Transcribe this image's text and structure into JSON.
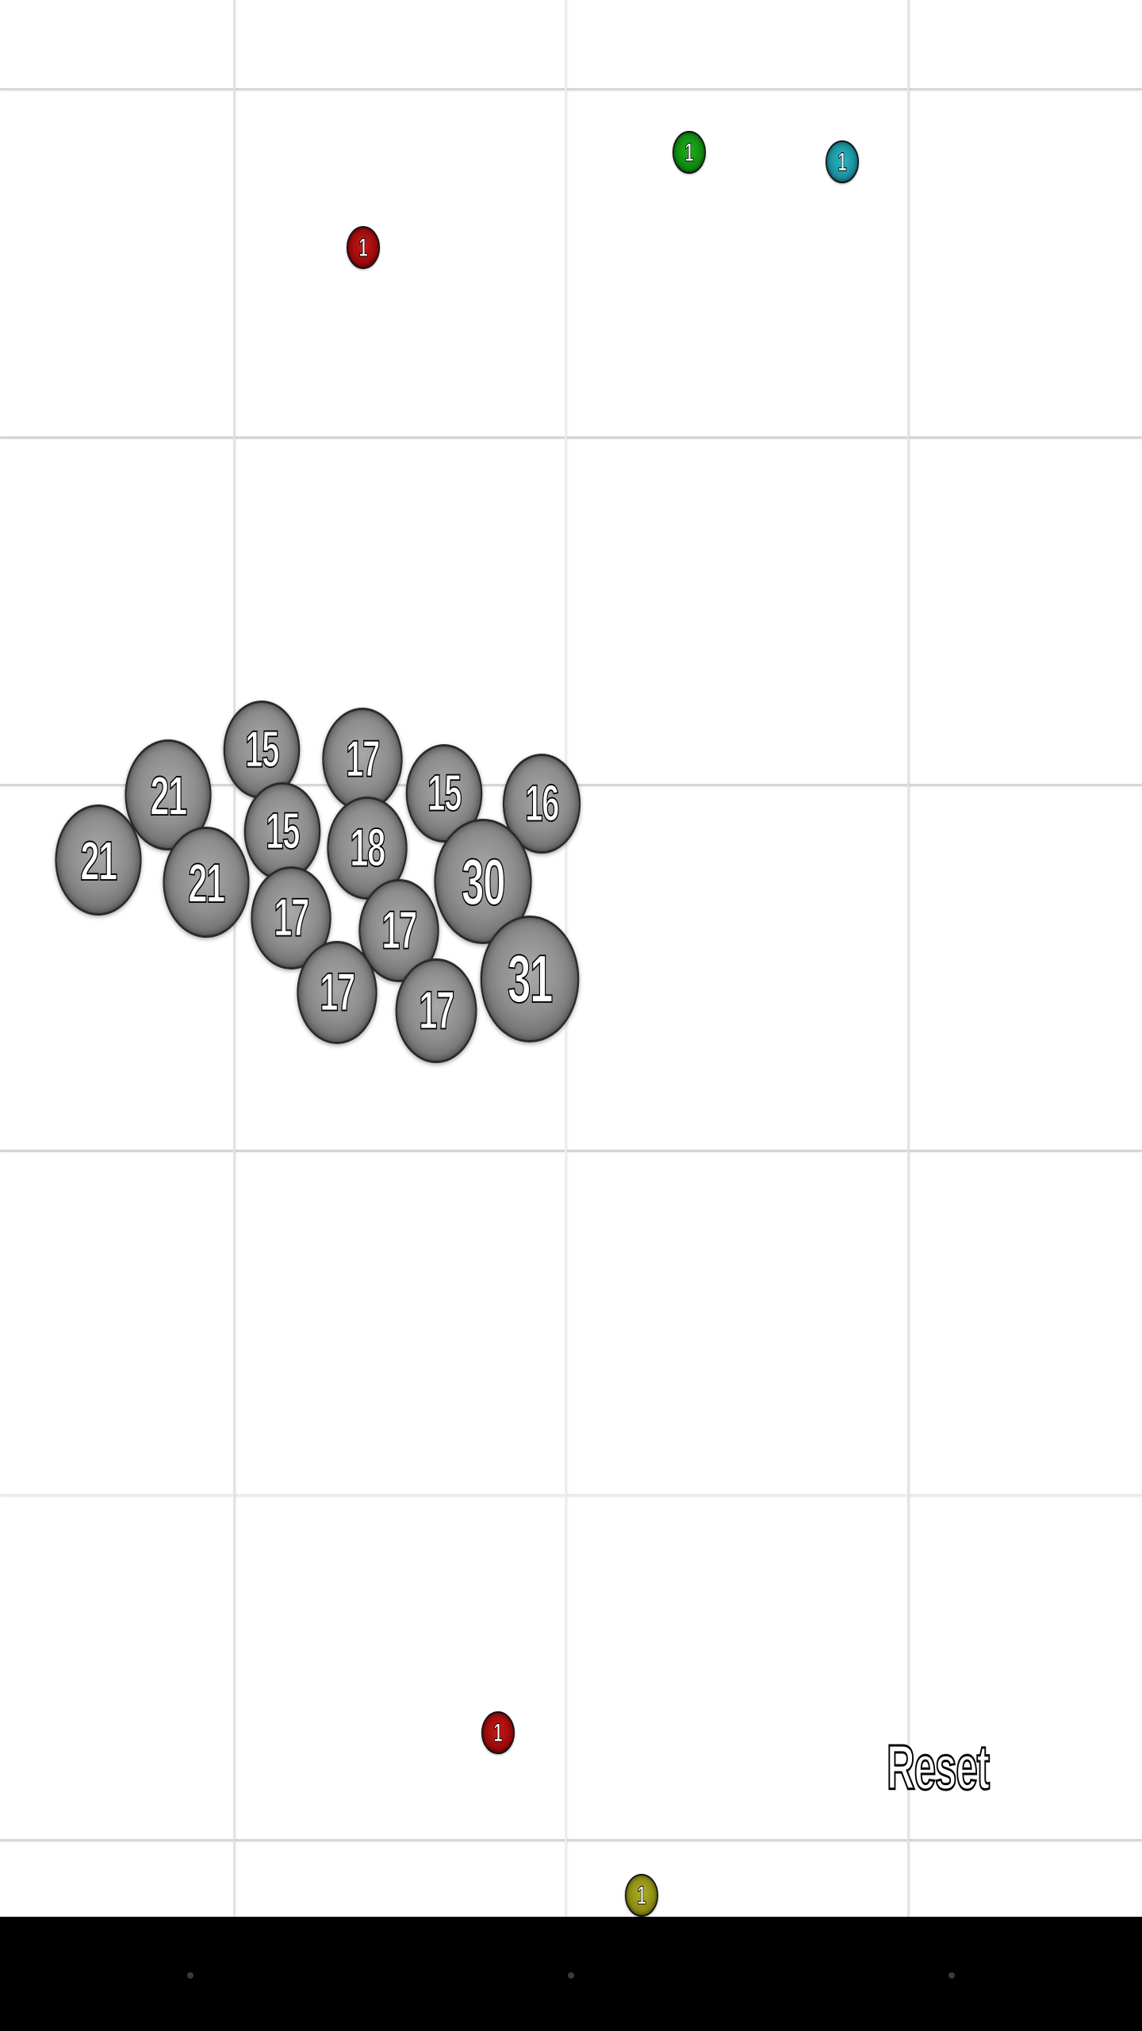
{
  "game": {
    "reset_label": "Reset",
    "colors": {
      "grid": "#d6d6d6",
      "cluster_cell": "#8e8e8e",
      "red": "#9b0a0a",
      "green": "#0f8a0f",
      "teal": "#1a8f9c",
      "olive": "#8a8a14",
      "navbar": "#000000"
    },
    "cluster": [
      {
        "value": "15"
      },
      {
        "value": "17"
      },
      {
        "value": "21"
      },
      {
        "value": "15"
      },
      {
        "value": "16"
      },
      {
        "value": "15"
      },
      {
        "value": "18"
      },
      {
        "value": "21"
      },
      {
        "value": "21"
      },
      {
        "value": "30"
      },
      {
        "value": "17"
      },
      {
        "value": "17"
      },
      {
        "value": "31"
      },
      {
        "value": "17"
      },
      {
        "value": "17"
      }
    ],
    "pellets": [
      {
        "value": "1",
        "color": "green"
      },
      {
        "value": "1",
        "color": "teal"
      },
      {
        "value": "1",
        "color": "red"
      },
      {
        "value": "1",
        "color": "red"
      },
      {
        "value": "1",
        "color": "olive"
      }
    ]
  },
  "navbar": {
    "buttons": [
      "back-button",
      "home-button",
      "recents-button"
    ]
  }
}
